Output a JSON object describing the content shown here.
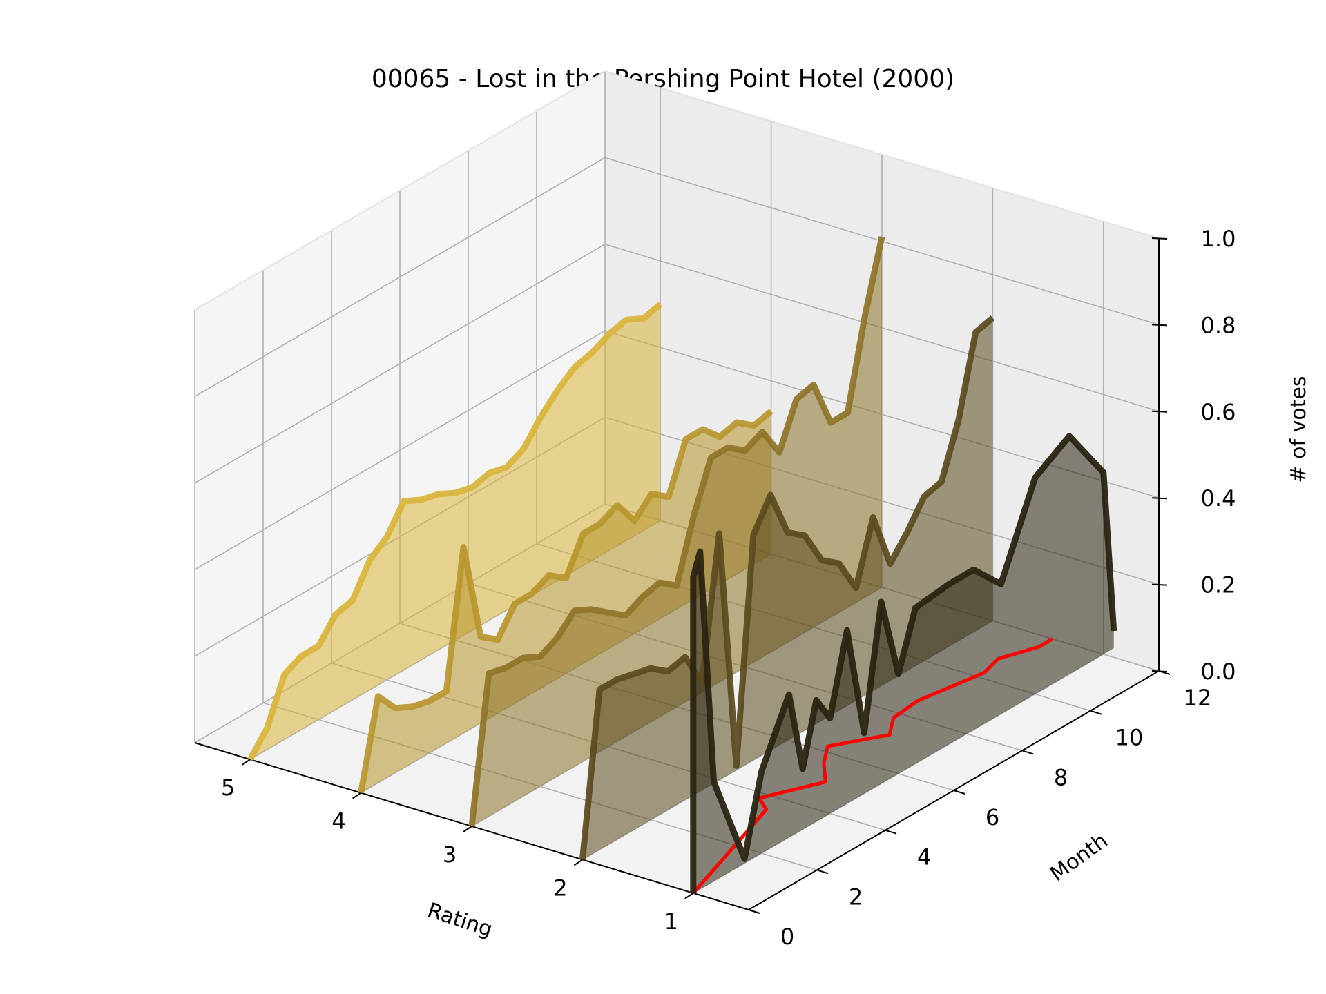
{
  "chart_data": {
    "type": "3d-line",
    "title": "00065 - Lost in the Pershing Point Hotel (2000)",
    "xlabel": "Rating",
    "ylabel": "Month",
    "zlabel": "# of votes",
    "x_ticks": [
      "1",
      "2",
      "3",
      "4",
      "5"
    ],
    "y_ticks": [
      "0",
      "2",
      "4",
      "6",
      "8",
      "10",
      "12"
    ],
    "z_ticks": [
      "0.0",
      "0.2",
      "0.4",
      "0.6",
      "0.8",
      "1.0"
    ],
    "xlim": [
      0.5,
      5.5
    ],
    "ylim": [
      0,
      12
    ],
    "zlim": [
      0,
      1
    ],
    "grid": true,
    "months": [
      0.0,
      0.5,
      1.0,
      1.5,
      2.0,
      2.5,
      3.0,
      3.5,
      4.0,
      4.5,
      5.0,
      5.5,
      6.0,
      6.5,
      7.0,
      7.5,
      8.0,
      8.5,
      9.0,
      9.5,
      10.0,
      10.5,
      11.0,
      11.5,
      12.0
    ],
    "series": [
      {
        "rating": 5,
        "color": "#d8b43a",
        "values": [
          0.0,
          0.05,
          0.15,
          0.17,
          0.17,
          0.22,
          0.23,
          0.3,
          0.33,
          0.39,
          0.37,
          0.36,
          0.34,
          0.33,
          0.34,
          0.33,
          0.35,
          0.4,
          0.44,
          0.47,
          0.48,
          0.5,
          0.51,
          0.49,
          0.5
        ]
      },
      {
        "rating": 4,
        "color": "#b8962e",
        "values": [
          0.0,
          0.2,
          0.15,
          0.13,
          0.12,
          0.12,
          0.43,
          0.2,
          0.17,
          0.23,
          0.23,
          0.25,
          0.22,
          0.3,
          0.3,
          0.32,
          0.26,
          0.3,
          0.27,
          0.38,
          0.38,
          0.34,
          0.35,
          0.32,
          0.33
        ]
      },
      {
        "rating": 3,
        "color": "#8e7428",
        "values": [
          0.0,
          0.33,
          0.32,
          0.32,
          0.3,
          0.32,
          0.36,
          0.34,
          0.31,
          0.28,
          0.3,
          0.31,
          0.28,
          0.42,
          0.53,
          0.53,
          0.5,
          0.52,
          0.45,
          0.55,
          0.56,
          0.45,
          0.45,
          0.65,
          0.81
        ]
      },
      {
        "rating": 2,
        "color": "#5a4a1e",
        "values": [
          0.0,
          0.37,
          0.37,
          0.36,
          0.35,
          0.32,
          0.33,
          0.25,
          0.57,
          0.01,
          0.52,
          0.59,
          0.48,
          0.45,
          0.37,
          0.34,
          0.26,
          0.4,
          0.27,
          0.32,
          0.38,
          0.39,
          0.51,
          0.69,
          0.7
        ]
      },
      {
        "rating": 1,
        "color": "#2a2412",
        "values": [
          0.0,
          0.0,
          0.0,
          0.0,
          0.0,
          0.0,
          0.0,
          0.0,
          0.0,
          0.0,
          0.0,
          0.0,
          0.0,
          0.0,
          0.0,
          0.0,
          0.0,
          0.0,
          0.0,
          0.0,
          0.0,
          0.0,
          0.0,
          0.0,
          0.0
        ]
      }
    ],
    "rating1_line": {
      "color": "#2a2412",
      "points": [
        [
          0.0,
          0.0
        ],
        [
          0.0,
          0.73
        ],
        [
          0.2,
          0.78
        ],
        [
          0.6,
          0.23
        ],
        [
          1.5,
          0.01
        ],
        [
          2.0,
          0.19
        ],
        [
          2.8,
          0.33
        ],
        [
          3.2,
          0.14
        ],
        [
          3.6,
          0.28
        ],
        [
          4.0,
          0.22
        ],
        [
          4.5,
          0.4
        ],
        [
          5.0,
          0.14
        ],
        [
          5.5,
          0.42
        ],
        [
          6.0,
          0.23
        ],
        [
          6.5,
          0.36
        ],
        [
          7.5,
          0.37
        ],
        [
          8.2,
          0.37
        ],
        [
          9.0,
          0.3
        ],
        [
          10.0,
          0.5
        ],
        [
          11.0,
          0.55
        ],
        [
          12.0,
          0.42
        ],
        [
          12.3,
          0.04
        ]
      ]
    },
    "mean_line": {
      "color": "#ff0000",
      "points": [
        [
          1,
          0.0,
          0.0
        ],
        [
          1.42,
          3.5,
          0.0
        ],
        [
          1.58,
          3.8,
          0.0
        ],
        [
          1.35,
          5.0,
          0.0
        ],
        [
          1.55,
          5.6,
          0.0
        ],
        [
          1.7,
          6.2,
          0.0
        ],
        [
          1.45,
          7.2,
          0.0
        ],
        [
          1.6,
          7.8,
          0.0
        ],
        [
          1.63,
          8.6,
          0.0
        ],
        [
          1.52,
          10.2,
          0.0
        ],
        [
          1.58,
          10.8,
          0.0
        ],
        [
          1.46,
          11.6,
          0.0
        ],
        [
          1.46,
          12.0,
          0.0
        ]
      ]
    }
  }
}
